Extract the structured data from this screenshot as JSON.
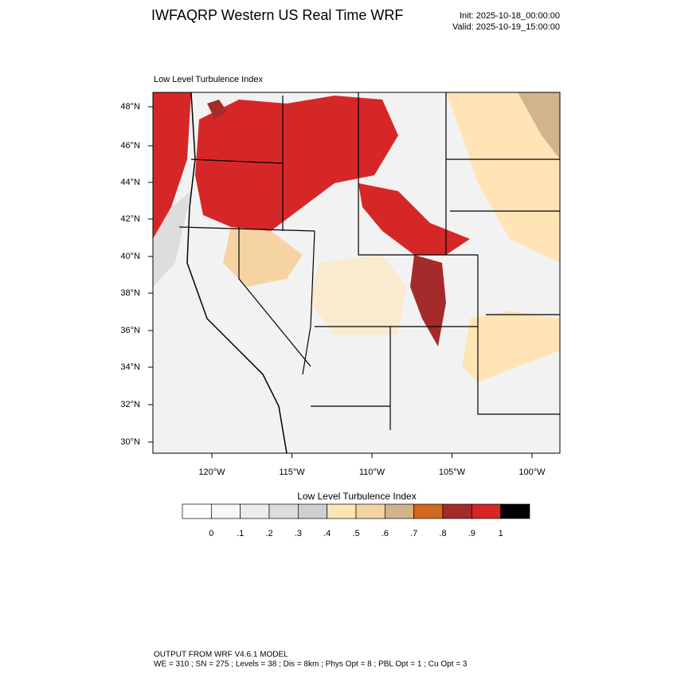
{
  "header": {
    "title": "IWFAQRP Western US Real Time WRF",
    "init": "Init: 2025-10-18_00:00:00",
    "valid": "Valid: 2025-10-19_15:00:00"
  },
  "map": {
    "field_title": "Low Level Turbulence Index",
    "lat_labels": [
      "48°N",
      "46°N",
      "44°N",
      "42°N",
      "40°N",
      "38°N",
      "36°N",
      "34°N",
      "32°N",
      "30°N"
    ],
    "lon_labels": [
      "120°W",
      "115°W",
      "110°W",
      "105°W",
      "100°W"
    ]
  },
  "colorbar": {
    "title": "Low Level Turbulence Index",
    "colors": [
      "#ffffff",
      "#f7f7f7",
      "#ececec",
      "#dddddd",
      "#cfcfcf",
      "#ffe4b5",
      "#f5d3a3",
      "#d2b48c",
      "#d2691e",
      "#a52a2a",
      "#d62728",
      "#000000"
    ],
    "labels": [
      "0",
      ".1",
      ".2",
      ".3",
      ".4",
      ".5",
      ".6",
      ".7",
      ".8",
      ".9",
      "1"
    ]
  },
  "footer": {
    "line1": "OUTPUT FROM WRF V4.6.1 MODEL",
    "line2": "WE = 310 ; SN = 275 ; Levels = 38 ; Dis = 8km ; Phys Opt = 8 ; PBL Opt = 1 ; Cu Opt = 3"
  }
}
